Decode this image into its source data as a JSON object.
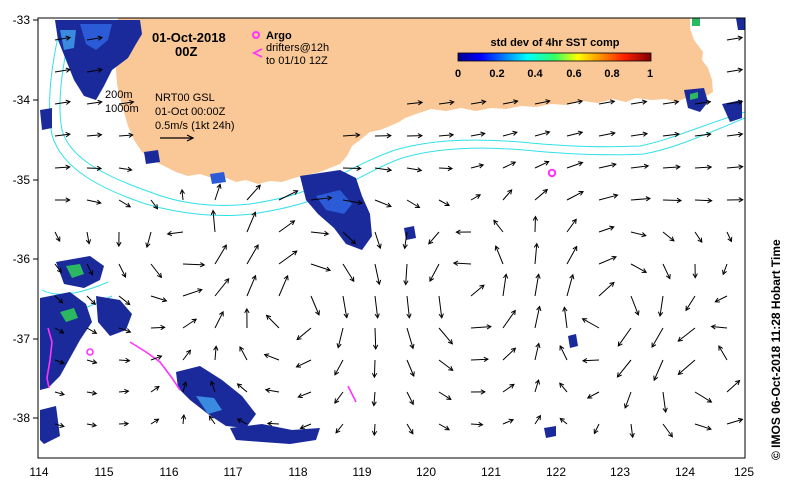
{
  "map": {
    "date_line": "01-Oct-2018",
    "time_line": "00Z",
    "argo_label": "Argo",
    "drifters_line1": "drifters@12h",
    "drifters_line2": "to 01/10 12Z",
    "colorbar_title": "std dev of 4hr SST comp",
    "colorbar_ticks": [
      "0",
      "0.2",
      "0.4",
      "0.6",
      "0.8",
      "1"
    ],
    "isobath_200": "200m",
    "isobath_1000": "1000m",
    "product_line1": "NRT00 GSL",
    "product_line2": "01-Oct 00:00Z",
    "product_line3": "0.5m/s (1kt 24h)",
    "side_label": "© IMOS 06-Oct-2018 11:28 Hobart Time",
    "lat_ticks": [
      "-33",
      "-34",
      "-35",
      "-36",
      "-37",
      "-38"
    ],
    "lon_ticks": [
      "114",
      "115",
      "116",
      "117",
      "118",
      "119",
      "120",
      "121",
      "122",
      "123",
      "124",
      "125"
    ],
    "colors": {
      "land": "#f9c896",
      "isobath": "#33e0e8",
      "argo": "#ff33ff",
      "drifter": "#ff33ff",
      "sst_dense": "#1a2a9a"
    }
  }
}
